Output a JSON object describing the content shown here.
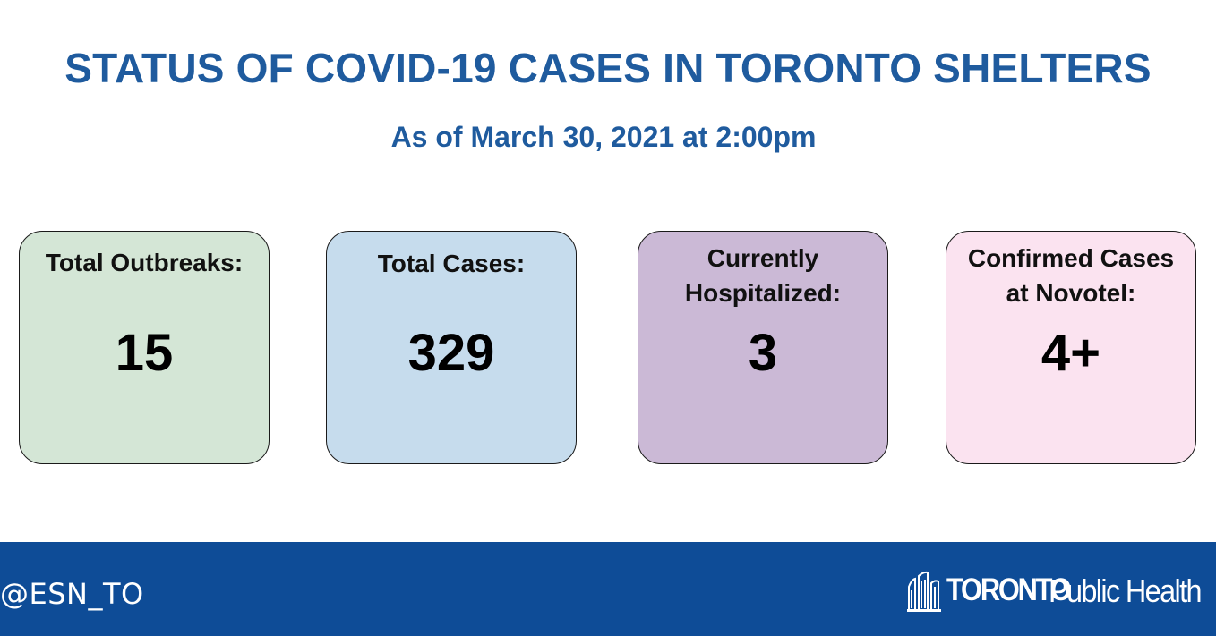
{
  "title": "STATUS OF COVID-19 CASES IN TORONTO SHELTERS",
  "subtitle": "As of March 30, 2021 at 2:00pm",
  "cards": [
    {
      "label_line1": "Total Outbreaks:",
      "label_line2": "",
      "value": "15",
      "color": "#d4e6d6"
    },
    {
      "label_line1": "Total Cases:",
      "label_line2": "",
      "value": "329",
      "color": "#c6dced"
    },
    {
      "label_line1": "Currently",
      "label_line2": "Hospitalized:",
      "value": "3",
      "color": "#cbb9d6"
    },
    {
      "label_line1": "Confirmed Cases",
      "label_line2": "at Novotel:",
      "value": "4+",
      "color": "#fbe3f0"
    }
  ],
  "footer": {
    "handle": "@ESN_TO",
    "background": "#0e4c97",
    "logo": {
      "icon": "city-hall-icon",
      "wordmark": "TORONTO",
      "text": "Public Health"
    }
  },
  "accent_color": "#1f5b9e"
}
